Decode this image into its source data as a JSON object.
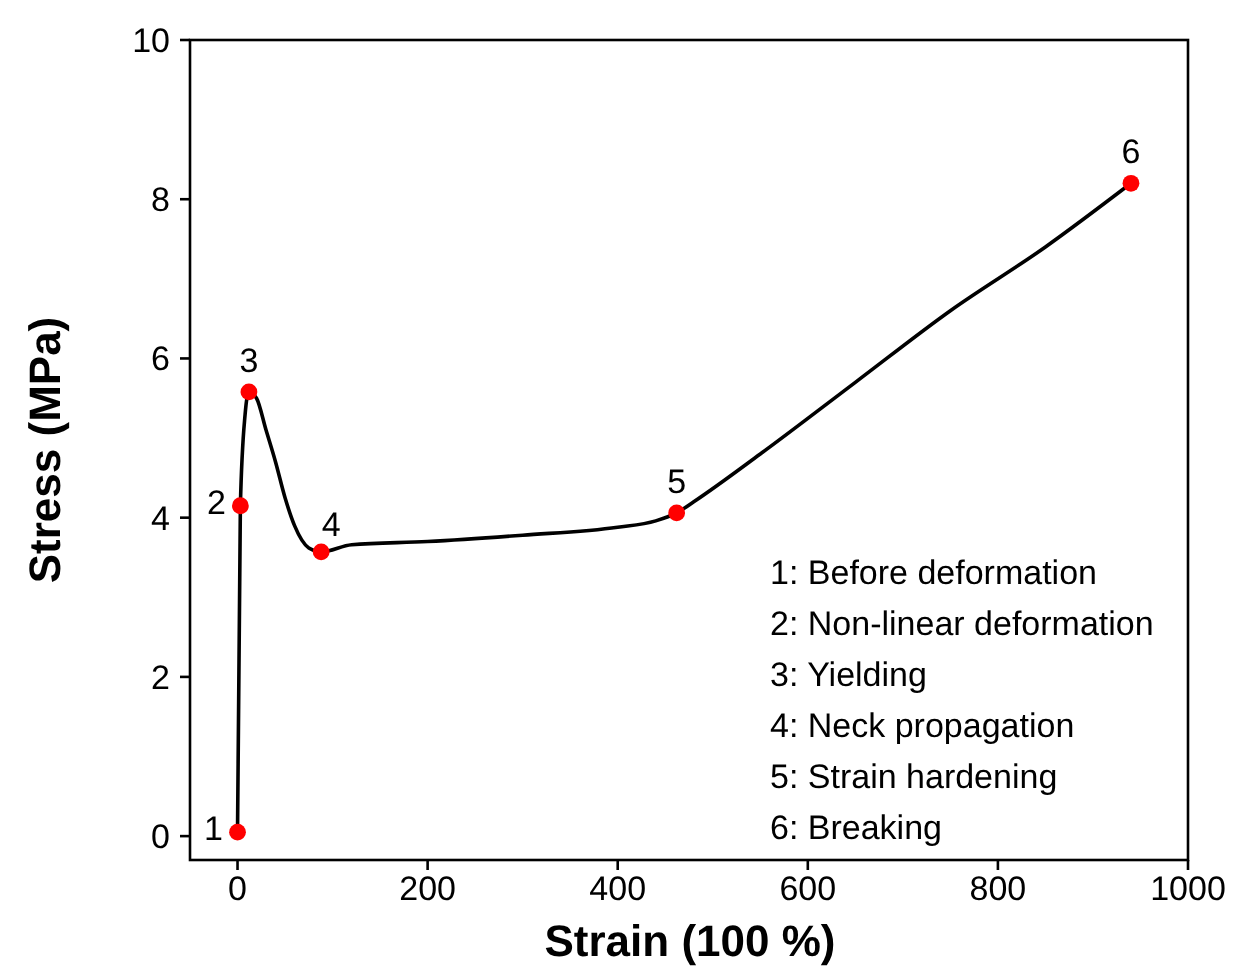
{
  "chart_data": {
    "type": "line",
    "xlabel": "Strain (100 %)",
    "ylabel": "Stress (MPa)",
    "xlim": [
      -50,
      1000
    ],
    "ylim": [
      -0.3,
      10
    ],
    "xticks": [
      0,
      200,
      400,
      600,
      800,
      1000
    ],
    "yticks": [
      0,
      2,
      4,
      6,
      8,
      10
    ],
    "grid": false,
    "series": [
      {
        "color": "#000000",
        "marker": "none",
        "x": [
          0,
          3,
          8,
          12,
          20,
          30,
          40,
          50,
          60,
          75,
          88,
          120,
          200,
          300,
          400,
          440,
          462,
          480,
          550,
          650,
          750,
          850,
          940
        ],
        "values": [
          0.05,
          4.15,
          5.3,
          5.58,
          5.5,
          5.1,
          4.7,
          4.25,
          3.9,
          3.62,
          3.57,
          3.66,
          3.7,
          3.78,
          3.88,
          3.96,
          4.06,
          4.2,
          4.8,
          5.7,
          6.6,
          7.4,
          8.2
        ]
      },
      {
        "type": "scatter",
        "color": "#ff0000",
        "marker": "circle",
        "x": [
          0,
          3,
          12,
          88,
          462,
          940
        ],
        "values": [
          0.05,
          4.15,
          5.58,
          3.57,
          4.06,
          8.2
        ]
      }
    ],
    "annotations": [
      {
        "text": "1",
        "x": 0,
        "y": 0.05
      },
      {
        "text": "2",
        "x": 3,
        "y": 4.15
      },
      {
        "text": "3",
        "x": 12,
        "y": 5.58
      },
      {
        "text": "4",
        "x": 88,
        "y": 3.57
      },
      {
        "text": "5",
        "x": 462,
        "y": 4.06
      },
      {
        "text": "6",
        "x": 940,
        "y": 8.2
      },
      "1: Before deformation",
      "2: Non-linear deformation",
      "3: Yielding",
      "4: Neck propagation",
      "5: Strain hardening",
      "6: Breaking"
    ]
  }
}
